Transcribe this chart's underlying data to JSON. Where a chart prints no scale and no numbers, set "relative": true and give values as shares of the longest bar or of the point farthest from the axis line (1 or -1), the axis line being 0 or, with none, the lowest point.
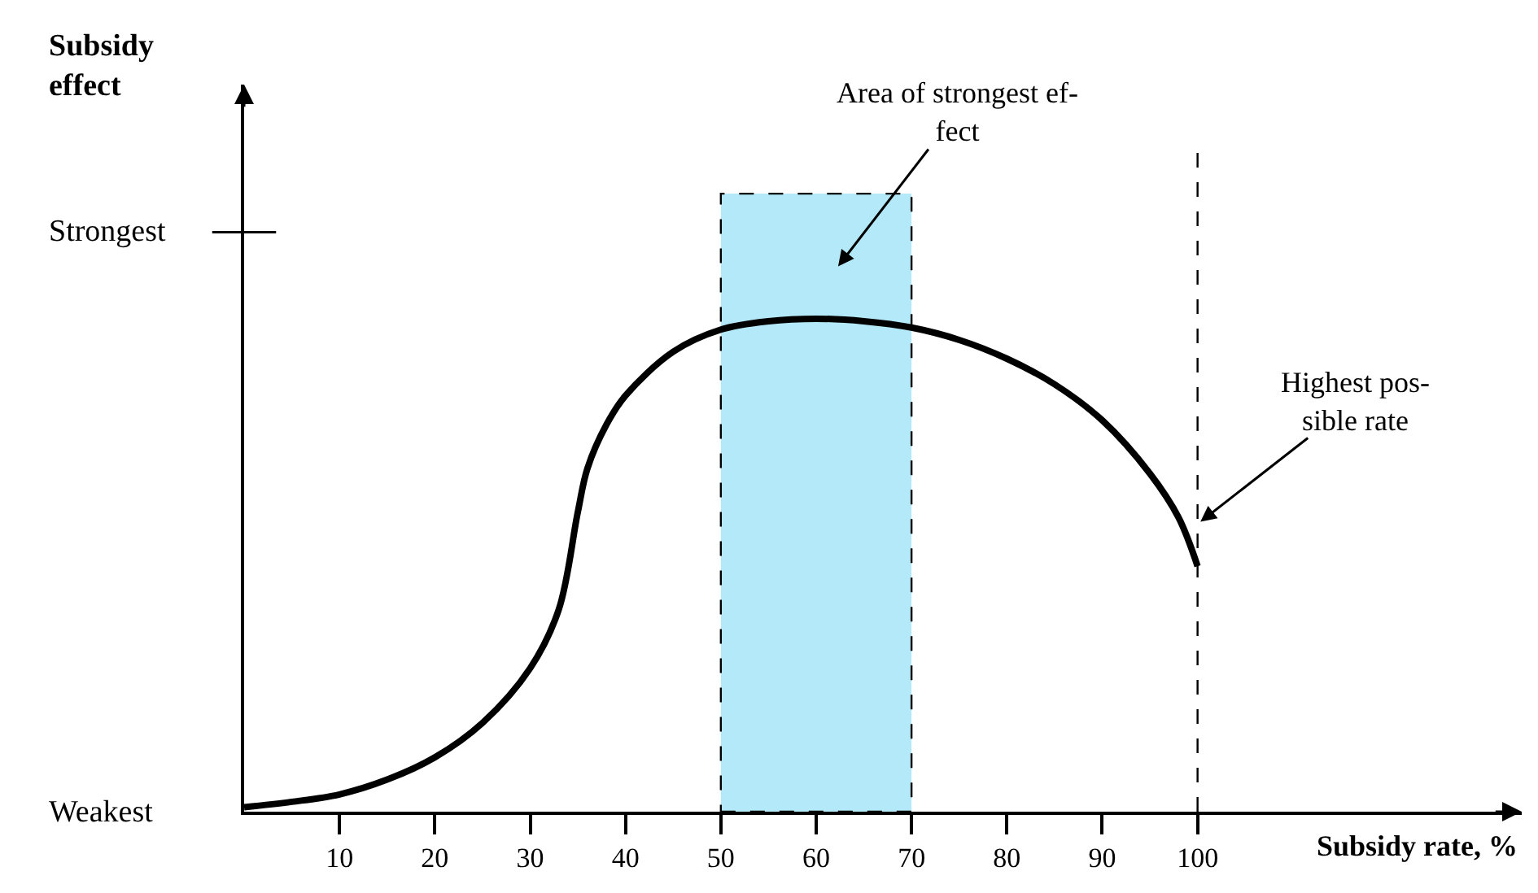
{
  "chart_data": {
    "type": "line",
    "xlabel": "Subsidy rate, %",
    "relative": true,
    "x": [
      0,
      5,
      10,
      15,
      20,
      25,
      30,
      33,
      35,
      36,
      38,
      40,
      45,
      50,
      55,
      60,
      65,
      70,
      75,
      80,
      85,
      90,
      95,
      98,
      100
    ],
    "series": [
      {
        "color": "#000000",
        "values": [
          0.009,
          0.02,
          0.035,
          0.065,
          0.11,
          0.18,
          0.291,
          0.41,
          0.608,
          0.696,
          0.785,
          0.844,
          0.933,
          0.978,
          0.995,
          1,
          0.995,
          0.982,
          0.957,
          0.919,
          0.867,
          0.794,
          0.686,
          0.597,
          0.498
        ]
      }
    ],
    "xlim": [
      0,
      134
    ],
    "xticks": [
      10,
      20,
      30,
      40,
      50,
      60,
      70,
      80,
      90,
      100
    ],
    "bands": [
      {
        "axis": "x",
        "from": 50,
        "to": 70,
        "color": "#b3e9f8"
      }
    ],
    "ref_lines": [
      {
        "axis": "x",
        "value": 100,
        "line_style": "dashed"
      }
    ],
    "annotations": [
      "Area of strongest ef-\nfect",
      {
        "text": "Highest pos-\nsible rate",
        "x": 100.3,
        "y": 0.588
      },
      "Subsidy effect",
      "Weakest",
      "Strongest"
    ],
    "line_style": "solid"
  }
}
